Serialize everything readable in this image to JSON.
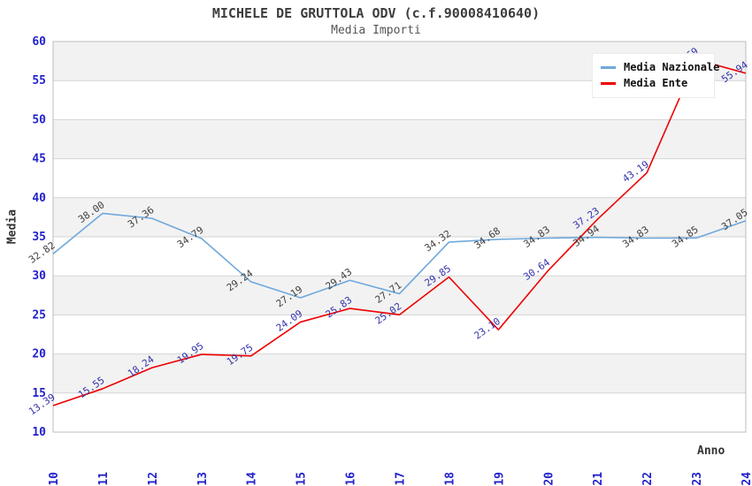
{
  "header": {
    "title": "MICHELE DE GRUTTOLA ODV (c.f.90008410640)",
    "subtitle": "Media Importi"
  },
  "axis_labels": {
    "x": "Anno",
    "y": "Media"
  },
  "colors": {
    "tick_label": "#2222cc",
    "grid_line": "#d4d4d4",
    "plot_border": "#bdbdbd",
    "band_fill": "#f2f2f2",
    "nazionale_line": "#6fa8dc",
    "nazionale_label": "#404040",
    "ente_line": "#ee0000",
    "ente_label": "#3333aa"
  },
  "chart_data": {
    "type": "line",
    "title": "MICHELE DE GRUTTOLA ODV (c.f.90008410640)",
    "subtitle": "Media Importi",
    "xlabel": "Anno",
    "ylabel": "Media",
    "x": [
      "2010",
      "2011",
      "2012",
      "2013",
      "2014",
      "2015",
      "2016",
      "2017",
      "2018",
      "2019",
      "2020",
      "2021",
      "2022",
      "2023",
      "2024"
    ],
    "y_ticks": [
      10,
      15,
      20,
      25,
      30,
      35,
      40,
      45,
      50,
      55,
      60
    ],
    "ylim": [
      10,
      60
    ],
    "grid": true,
    "alternating_bands": true,
    "legend_position": "top-right",
    "series": [
      {
        "name": "Media Nazionale",
        "color": "#6fa8dc",
        "label_color": "#404040",
        "values": [
          32.82,
          38.0,
          37.36,
          34.79,
          29.24,
          27.19,
          29.43,
          27.71,
          34.32,
          34.68,
          34.83,
          34.94,
          34.83,
          34.85,
          37.05
        ]
      },
      {
        "name": "Media Ente",
        "color": "#ee0000",
        "label_color": "#3333aa",
        "values": [
          13.39,
          15.55,
          18.24,
          19.95,
          19.75,
          24.09,
          25.83,
          25.02,
          29.85,
          23.1,
          30.64,
          37.23,
          43.19,
          57.69,
          55.94
        ]
      }
    ]
  }
}
